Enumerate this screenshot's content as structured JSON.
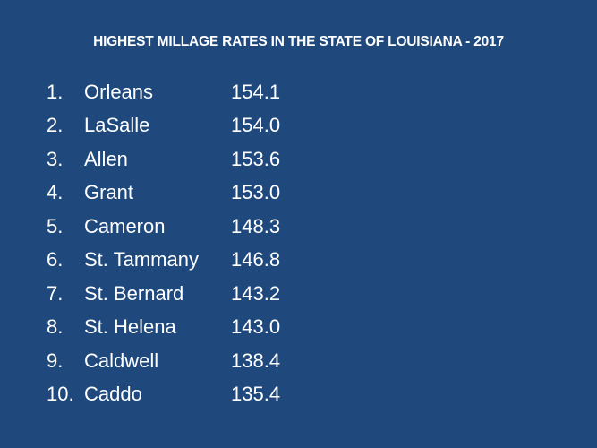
{
  "slide": {
    "title": "HIGHEST MILLAGE RATES IN THE STATE OF LOUISIANA - 2017",
    "background_color": "#1f497d",
    "rows": [
      {
        "rank": "1.",
        "parish": "Orleans",
        "rate": "154.1"
      },
      {
        "rank": "2.",
        "parish": "LaSalle",
        "rate": "154.0"
      },
      {
        "rank": "3.",
        "parish": "Allen",
        "rate": "153.6"
      },
      {
        "rank": "4.",
        "parish": "Grant",
        "rate": "153.0"
      },
      {
        "rank": "5.",
        "parish": "Cameron",
        "rate": "148.3"
      },
      {
        "rank": "6.",
        "parish": "St. Tammany",
        "rate": "146.8"
      },
      {
        "rank": "7.",
        "parish": "St. Bernard",
        "rate": "143.2"
      },
      {
        "rank": "8.",
        "parish": "St. Helena",
        "rate": "143.0"
      },
      {
        "rank": "9.",
        "parish": "Caldwell",
        "rate": "138.4"
      },
      {
        "rank": "10.",
        "parish": "Caddo",
        "rate": "135.4"
      }
    ]
  }
}
